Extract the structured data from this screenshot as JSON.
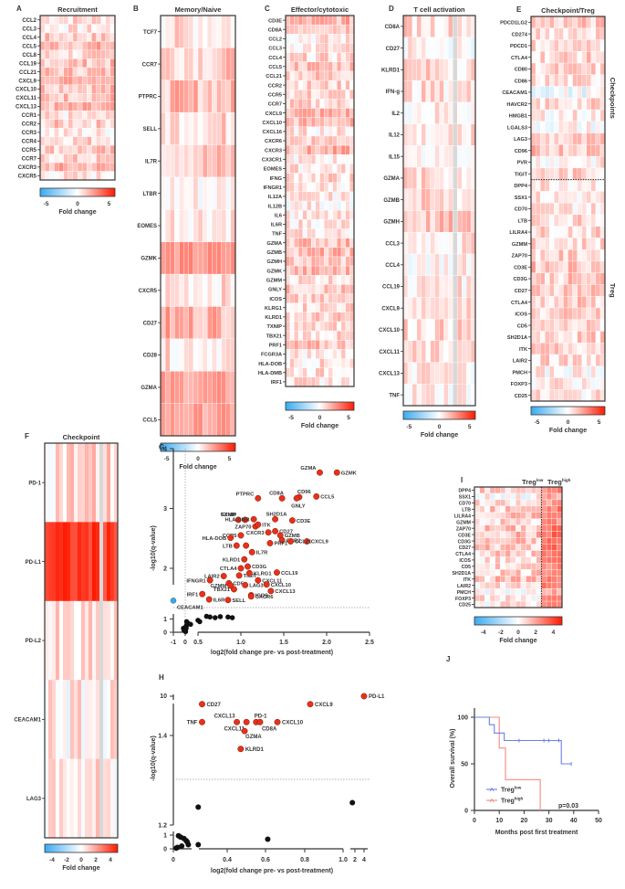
{
  "chart_data": [
    {
      "id": "A",
      "type": "heatmap",
      "panel_label": "A",
      "title": "Recruitment",
      "rows": [
        "CCL2",
        "CCL3",
        "CCL4",
        "CCL5",
        "CCL8",
        "CCL19",
        "CCL21",
        "CXCL9",
        "CXCL10",
        "CXCL11",
        "CXCL13",
        "CCR1",
        "CCR2",
        "CCR3",
        "CCR4",
        "CCR5",
        "CCR7",
        "CXCR3",
        "CXCR5"
      ],
      "n_columns": 16,
      "colorbar": {
        "label": "Fold change",
        "ticks": [
          "-5",
          "0",
          "5"
        ],
        "range": [
          -6,
          6
        ]
      },
      "row_intensity": [
        1,
        0.5,
        1.2,
        1.8,
        0.8,
        1.5,
        1.5,
        2.2,
        1.6,
        1.6,
        1.6,
        0.5,
        1.2,
        0.4,
        1.1,
        1.3,
        1.0,
        1.8,
        0.5
      ]
    },
    {
      "id": "B",
      "type": "heatmap",
      "panel_label": "B",
      "title": "Memory/Naive",
      "rows": [
        "TCF7",
        "CCR7",
        "PTPRC",
        "SELL",
        "IL7R",
        "LTBR",
        "EOMES",
        "GZMK",
        "CXCR5",
        "CD27",
        "CD28",
        "GZMA",
        "CCL5"
      ],
      "n_columns": 16,
      "colorbar": {
        "label": "Fold change",
        "ticks": [
          "-5",
          "0",
          "5"
        ],
        "range": [
          -6,
          6
        ]
      },
      "row_intensity": [
        0.7,
        1.3,
        1.6,
        1.0,
        1.4,
        0.2,
        0.8,
        2.6,
        0.7,
        2.0,
        0.7,
        2.3,
        2.3
      ]
    },
    {
      "id": "C",
      "type": "heatmap",
      "panel_label": "C",
      "title": "Effector/cytotoxic",
      "rows": [
        "CD3E",
        "CD8A",
        "CCL2",
        "CCL3",
        "CCL4",
        "CCL5",
        "CCL21",
        "CCR2",
        "CCR5",
        "CCR7",
        "CXCL9",
        "CXCL10",
        "CXCL16",
        "CXCR6",
        "CXCR3",
        "CX3CR1",
        "EOMES",
        "IFNG",
        "IFNGR1",
        "IL12A",
        "IL12B",
        "IL6",
        "IL6R",
        "TNF",
        "GZMA",
        "GZMB",
        "GZMH",
        "GZMK",
        "GZMM",
        "GNLY",
        "ICOS",
        "KLRG1",
        "KLRD1",
        "TXNIP",
        "TBX21",
        "PRF1",
        "FCGR3A",
        "HLA-DOB",
        "HLA-DMB",
        "IRF1"
      ],
      "n_columns": 16,
      "colorbar": {
        "label": "Fold change",
        "ticks": [
          "-5",
          "0",
          "5"
        ],
        "range": [
          -6,
          6
        ]
      },
      "row_intensity": [
        1.8,
        1.7,
        0.5,
        0.6,
        0.8,
        1.6,
        1.3,
        1.0,
        1.0,
        0.9,
        1.9,
        1.6,
        0.5,
        1.4,
        1.8,
        0.4,
        0.6,
        0.9,
        0.6,
        0.4,
        0.3,
        0.4,
        0.6,
        0.5,
        1.6,
        1.7,
        1.3,
        1.7,
        0.9,
        1.3,
        0.9,
        1.0,
        1.1,
        0.8,
        0.8,
        1.4,
        0.5,
        0.7,
        0.8,
        0.6
      ]
    },
    {
      "id": "D",
      "type": "heatmap",
      "panel_label": "D",
      "title": "T cell activation",
      "rows": [
        "CD8A",
        "CD27",
        "KLRD1",
        "IFN-g",
        "IL2",
        "IL12",
        "IL15",
        "GZMA",
        "GZMB",
        "GZMH",
        "CCL3",
        "CCL4",
        "CCL19",
        "CXCL9",
        "CXCL10",
        "CXCL11",
        "CXCL13",
        "TNF"
      ],
      "n_columns": 16,
      "missing_column": 11,
      "colorbar": {
        "label": "Fold change",
        "ticks": [
          "-5",
          "0",
          "5"
        ],
        "range": [
          -6,
          6
        ]
      },
      "row_intensity": [
        0.9,
        0.2,
        0.9,
        0.7,
        0.4,
        0.5,
        0.4,
        0.8,
        0.8,
        1.3,
        0.5,
        0.3,
        0.5,
        1.0,
        0.9,
        0.6,
        0.5,
        0.4
      ]
    },
    {
      "id": "E",
      "type": "heatmap",
      "panel_label": "E",
      "title": "Checkpoint/Treg",
      "rows": [
        "PDCD1LG2",
        "CD274",
        "PDCD1",
        "CTLA4",
        "CD80",
        "CD86",
        "CEACAM1",
        "HAVCR2",
        "HMGB1",
        "LGALS3",
        "LAG3",
        "CD96",
        "PVR",
        "TIGIT",
        "DPP4",
        "SSX1",
        "CD70",
        "LTB",
        "LILRA4",
        "GZMM",
        "ZAP70",
        "CD3E",
        "CD3G",
        "CD27",
        "CTLA4",
        "ICOS",
        "CD5",
        "SH2D1A",
        "ITK",
        "LAIR2",
        "PMCH",
        "FOXP3",
        "CD25"
      ],
      "n_columns": 16,
      "groups": [
        {
          "name": "Checkpoints",
          "n_rows": 14
        },
        {
          "name": "Treg",
          "n_rows": 19
        }
      ],
      "colorbar": {
        "label": "Fold change",
        "ticks": [
          "-5",
          "0",
          "5"
        ],
        "range": [
          -6,
          6
        ]
      },
      "row_intensity": [
        1.2,
        1.0,
        0.8,
        1.0,
        0.9,
        0.7,
        -0.5,
        0.8,
        0.4,
        0.0,
        1.0,
        1.5,
        0.3,
        1.0,
        0.8,
        0.4,
        0.6,
        0.9,
        0.9,
        0.9,
        1.0,
        1.5,
        1.2,
        1.4,
        1.1,
        0.9,
        0.8,
        1.0,
        1.1,
        0.8,
        0.2,
        0.4,
        0.5
      ]
    },
    {
      "id": "F",
      "type": "heatmap",
      "panel_label": "F",
      "title": "Checkpoint",
      "rows": [
        "PD-1",
        "PD-L1",
        "PD-L2",
        "CEACAM1",
        "LAG3"
      ],
      "n_columns": 20,
      "missing_column": 15,
      "colorbar": {
        "label": "Fold change",
        "ticks": [
          "-4",
          "-2",
          "0",
          "2",
          "4"
        ],
        "range": [
          -5,
          5
        ]
      },
      "row_intensity": [
        0.8,
        4.2,
        0.3,
        0.2,
        0.5
      ]
    },
    {
      "id": "G",
      "type": "scatter",
      "panel_label": "G",
      "xlabel": "log2(fold change pre- vs post-treatment)",
      "ylabel": "-log10(q-value)",
      "x_ticks": [
        "-1",
        "0",
        "0.5",
        "1.0",
        "1.5",
        "2.0",
        "2.5"
      ],
      "y_ticks_upper": [
        "2",
        "3",
        "4"
      ],
      "y_ticks_lower": [
        "0",
        "1"
      ],
      "xlim": [
        -1,
        2.5
      ],
      "ylim_upper": [
        1.3,
        4
      ],
      "ylim_lower": [
        0,
        1.3
      ],
      "significance_threshold": 1.3,
      "significant_points": [
        {
          "label": "GZMA",
          "x": 1.92,
          "y": 3.6
        },
        {
          "label": "GZMK",
          "x": 2.12,
          "y": 3.6
        },
        {
          "label": "PTPRC",
          "x": 1.2,
          "y": 3.17
        },
        {
          "label": "CD8A",
          "x": 1.48,
          "y": 3.17
        },
        {
          "label": "CD96",
          "x": 1.68,
          "y": 3.19
        },
        {
          "label": "GNLY",
          "x": 1.65,
          "y": 3.17
        },
        {
          "label": "CCL5",
          "x": 1.88,
          "y": 3.2
        },
        {
          "label": "TXNIP",
          "x": 0.97,
          "y": 2.81
        },
        {
          "label": "GZMH",
          "x": 1.05,
          "y": 2.81
        },
        {
          "label": "HLA-DMB",
          "x": 1.15,
          "y": 2.82
        },
        {
          "label": "SH2D1A",
          "x": 1.4,
          "y": 2.82
        },
        {
          "label": "CD3E",
          "x": 1.6,
          "y": 2.8
        },
        {
          "label": "ZAP70",
          "x": 1.17,
          "y": 2.7
        },
        {
          "label": "ITK",
          "x": 1.2,
          "y": 2.73
        },
        {
          "label": "CD27",
          "x": 1.4,
          "y": 2.62
        },
        {
          "label": "CCR5",
          "x": 1.0,
          "y": 2.55
        },
        {
          "label": "CXCR3",
          "x": 1.32,
          "y": 2.6
        },
        {
          "label": "GZMB",
          "x": 1.46,
          "y": 2.55
        },
        {
          "label": "HLA-DOB",
          "x": 0.88,
          "y": 2.51
        },
        {
          "label": "CXCL9",
          "x": 1.77,
          "y": 2.45
        },
        {
          "label": "CCR2",
          "x": 1.48,
          "y": 2.47
        },
        {
          "label": "LTB",
          "x": 0.95,
          "y": 2.38
        },
        {
          "label": "CCR2b",
          "x": 1.06,
          "y": 2.38
        },
        {
          "label": "PRF1",
          "x": 1.34,
          "y": 2.42
        },
        {
          "label": "CCL21",
          "x": 1.58,
          "y": 2.45
        },
        {
          "label": "IL7R",
          "x": 1.13,
          "y": 2.27
        },
        {
          "label": "KLRD1",
          "x": 1.04,
          "y": 2.15
        },
        {
          "label": "CTLA4",
          "x": 1.0,
          "y": 2.0
        },
        {
          "label": "CD3G",
          "x": 1.08,
          "y": 2.03
        },
        {
          "label": "CCL19",
          "x": 1.42,
          "y": 1.93
        },
        {
          "label": "LAIR2",
          "x": 0.8,
          "y": 1.87
        },
        {
          "label": "TIGIT",
          "x": 0.98,
          "y": 1.88
        },
        {
          "label": "KLRG1",
          "x": 1.1,
          "y": 1.92
        },
        {
          "label": "IFNGR1",
          "x": 0.64,
          "y": 1.8
        },
        {
          "label": "CD5",
          "x": 0.86,
          "y": 1.75
        },
        {
          "label": "CXCL11",
          "x": 1.2,
          "y": 1.8
        },
        {
          "label": "LAG3",
          "x": 1.05,
          "y": 1.72
        },
        {
          "label": "GZMM",
          "x": 0.88,
          "y": 1.71
        },
        {
          "label": "CXCL10",
          "x": 1.3,
          "y": 1.73
        },
        {
          "label": "TBX21",
          "x": 0.92,
          "y": 1.65
        },
        {
          "label": "ICOS",
          "x": 1.12,
          "y": 1.55
        },
        {
          "label": "CXCL13",
          "x": 1.35,
          "y": 1.62
        },
        {
          "label": "IRF1",
          "x": 0.55,
          "y": 1.57
        },
        {
          "label": "CXCR6",
          "x": 1.12,
          "y": 1.53
        },
        {
          "label": "SELL",
          "x": 0.85,
          "y": 1.47
        },
        {
          "label": "IL6R",
          "x": 0.63,
          "y": 1.48
        }
      ],
      "down_points": [
        {
          "label": "CEACAM1",
          "x": -1.0,
          "y": 1.46
        }
      ],
      "nonsignificant_points": [
        {
          "x": -0.15,
          "y": 0.3
        },
        {
          "x": -0.05,
          "y": 0.2
        },
        {
          "x": 0.0,
          "y": 0.1
        },
        {
          "x": 0.05,
          "y": 0.4
        },
        {
          "x": 0.1,
          "y": 0.5
        },
        {
          "x": 0.15,
          "y": 0.6
        },
        {
          "x": 0.12,
          "y": 0.8
        },
        {
          "x": 0.08,
          "y": 0.3
        },
        {
          "x": 0.03,
          "y": 0.05
        },
        {
          "x": -0.1,
          "y": 0.15
        },
        {
          "x": 0.2,
          "y": 0.7
        },
        {
          "x": 0.45,
          "y": 0.6
        },
        {
          "x": 0.5,
          "y": 0.9
        },
        {
          "x": 0.52,
          "y": 0.8
        },
        {
          "x": 0.6,
          "y": 1.2
        },
        {
          "x": 0.64,
          "y": 1.15
        },
        {
          "x": 0.7,
          "y": 1.1
        },
        {
          "x": 0.76,
          "y": 1.18
        },
        {
          "x": 0.85,
          "y": 1.15
        },
        {
          "x": 0.9,
          "y": 1.1
        }
      ]
    },
    {
      "id": "H",
      "type": "scatter",
      "panel_label": "H",
      "xlabel": "log2(fold change pre- vs post-treatment)",
      "ylabel": "-log10(q-value)",
      "x_ticks": [
        "0",
        "0.4",
        "0.6",
        "0.8",
        "1.0",
        "2",
        "4"
      ],
      "y_ticks_upper": [
        "10"
      ],
      "y_ticks_middle": [
        "1.2",
        "1.4"
      ],
      "y_ticks_lower": [
        "0",
        "1"
      ],
      "significance_threshold": 1.3,
      "significant_points": [
        {
          "label": "PD-L1",
          "x": 2.5,
          "y": 10.0
        },
        {
          "label": "CD27",
          "x": 0.27,
          "y": 1.47
        },
        {
          "label": "CXCL9",
          "x": 0.83,
          "y": 1.47
        },
        {
          "label": "TNF",
          "x": 0.27,
          "y": 1.43
        },
        {
          "label": "CXCL13",
          "x": 0.45,
          "y": 1.43
        },
        {
          "label": "CXCL11",
          "x": 0.5,
          "y": 1.43
        },
        {
          "label": "PD-1",
          "x": 0.55,
          "y": 1.43
        },
        {
          "label": "CD8A",
          "x": 0.57,
          "y": 1.43
        },
        {
          "label": "CXCL10",
          "x": 0.66,
          "y": 1.43
        },
        {
          "label": "GZMA",
          "x": 0.49,
          "y": 1.41
        },
        {
          "label": "KLRD1",
          "x": 0.47,
          "y": 1.37
        }
      ],
      "nonsignificant_points": [
        {
          "x": 0.25,
          "y": 1.24
        },
        {
          "x": 1.8,
          "y": 1.25
        },
        {
          "x": 0.61,
          "y": 0.7
        },
        {
          "x": 0.25,
          "y": 0.3
        },
        {
          "x": 0.01,
          "y": 0.05
        },
        {
          "x": 0.02,
          "y": 0.1
        },
        {
          "x": 0.03,
          "y": 0.95
        },
        {
          "x": 0.05,
          "y": 0.85
        },
        {
          "x": 0.06,
          "y": 0.2
        },
        {
          "x": 0.08,
          "y": 0.75
        },
        {
          "x": 0.1,
          "y": 0.6
        },
        {
          "x": 0.11,
          "y": 0.5
        },
        {
          "x": 0.12,
          "y": 0.3
        }
      ]
    },
    {
      "id": "I",
      "type": "heatmap",
      "panel_label": "I",
      "rows": [
        "DPP4",
        "SSX1",
        "CD70",
        "LTB",
        "LILRA4",
        "GZMM",
        "ZAP70",
        "CD3E",
        "CD3G",
        "CD27",
        "CTLA4",
        "ICOS",
        "CD5",
        "SH2D1A",
        "ITK",
        "LAIR2",
        "PMCH",
        "FOXP3",
        "CD25"
      ],
      "n_columns": 17,
      "groups": [
        {
          "name": "Treg low",
          "n_columns": 13
        },
        {
          "name": "Treg high",
          "n_columns": 4
        }
      ],
      "colorbar": {
        "label": "Fold change",
        "ticks": [
          "-4",
          "-2",
          "0",
          "2",
          "4"
        ],
        "range": [
          -5,
          5
        ]
      },
      "row_intensity": [
        0.8,
        0.0,
        0.3,
        0.9,
        0.9,
        0.6,
        1.0,
        1.3,
        1.0,
        1.2,
        0.9,
        0.6,
        0.6,
        1.0,
        1.0,
        0.7,
        0.1,
        0.4,
        0.4
      ]
    },
    {
      "id": "J",
      "type": "line",
      "panel_label": "J",
      "subtype": "kaplan-meier",
      "xlabel": "Months post first treatment",
      "ylabel": "Overall survival (%)",
      "x_ticks": [
        "0",
        "10",
        "20",
        "30",
        "40",
        "50"
      ],
      "y_ticks": [
        "0",
        "50",
        "100"
      ],
      "xlim": [
        0,
        50
      ],
      "ylim": [
        0,
        100
      ],
      "annotation": "p=0.03",
      "legend_position": "bottom-left",
      "series": [
        {
          "name": "Treg low",
          "name_base": "Treg",
          "name_sup": "low",
          "color": "#6b7fe8",
          "steps": [
            [
              0,
              100
            ],
            [
              6,
              100
            ],
            [
              6,
              92
            ],
            [
              8,
              92
            ],
            [
              8,
              83
            ],
            [
              12,
              83
            ],
            [
              12,
              75
            ],
            [
              35,
              75
            ],
            [
              35,
              50
            ],
            [
              39,
              50
            ]
          ],
          "censored": [
            [
              18,
              75
            ],
            [
              28,
              75
            ],
            [
              30,
              75
            ],
            [
              34,
              75
            ],
            [
              39,
              50
            ]
          ]
        },
        {
          "name": "Treg high",
          "name_base": "Treg",
          "name_sup": "high",
          "color": "#f4897e",
          "steps": [
            [
              0,
              100
            ],
            [
              10,
              100
            ],
            [
              10,
              67
            ],
            [
              12.5,
              67
            ],
            [
              12.5,
              33
            ],
            [
              26.5,
              33
            ],
            [
              26.5,
              0
            ]
          ],
          "censored": []
        }
      ]
    }
  ],
  "labels": {
    "I_group_low_base": "Treg",
    "I_group_low_sup": "low",
    "I_group_high_base": "Treg",
    "I_group_high_sup": "high"
  },
  "colors": {
    "negative": "#3aaaf0",
    "neutral": "#ffffff",
    "positive": "#ff2a00",
    "significant_point": "#e8311a",
    "down_point": "#3fa6e8",
    "missing": "#d4d4d4"
  }
}
